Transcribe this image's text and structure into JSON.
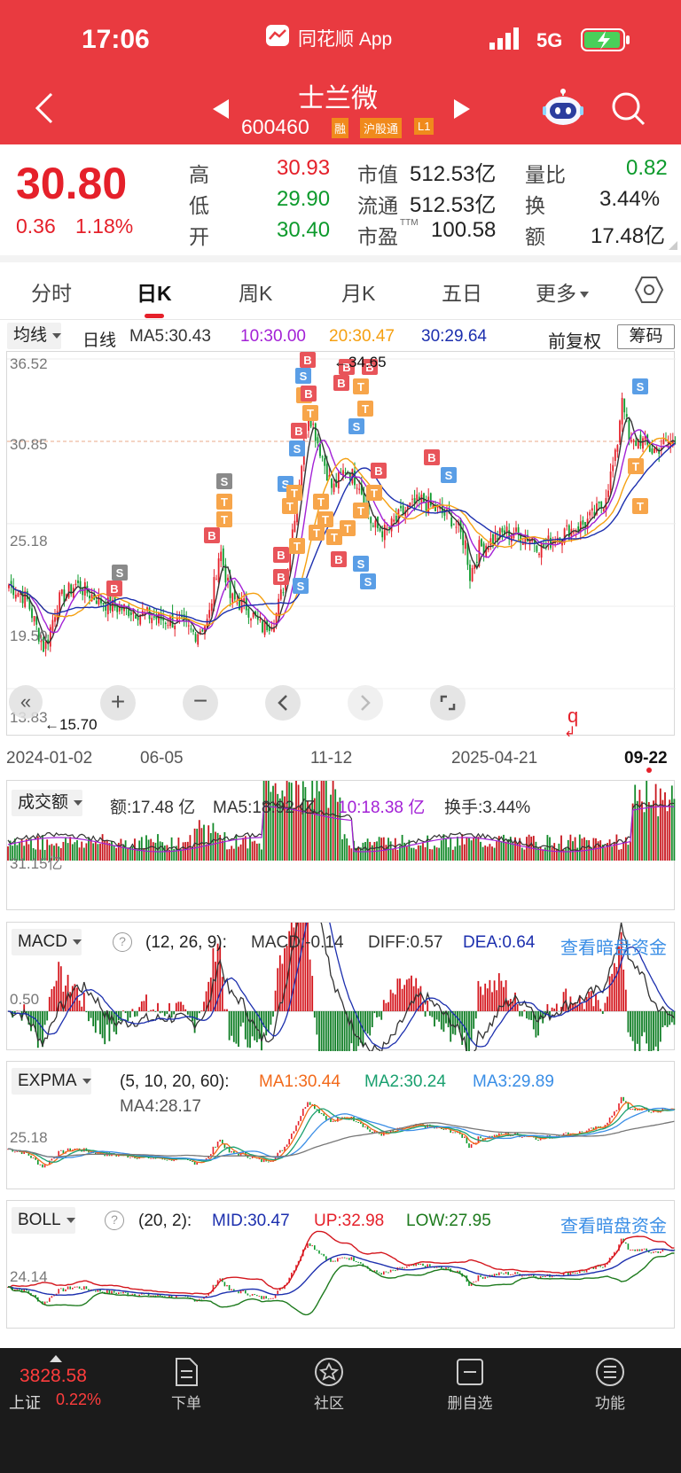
{
  "status_bar": {
    "time": "17:06",
    "app_name": "同花顺 App",
    "network": "5G"
  },
  "nav": {
    "stock_name": "士兰微",
    "stock_code": "600460",
    "badges": [
      "融",
      "沪股通",
      "L1"
    ]
  },
  "quote": {
    "price": "30.80",
    "change": "0.36",
    "change_pct": "1.18%",
    "high_label": "高",
    "high": "30.93",
    "low_label": "低",
    "low": "29.90",
    "open_label": "开",
    "open": "30.40",
    "mktcap_label": "市值",
    "mktcap": "512.53亿",
    "float_label": "流通",
    "float_cap": "512.53亿",
    "pe_label": "市盈",
    "pe_sup": "TTM",
    "pe": "100.58",
    "vol_ratio_label": "量比",
    "vol_ratio": "0.82",
    "turnover_label": "换",
    "turnover": "3.44%",
    "amount_label": "额",
    "amount": "17.48亿"
  },
  "tabs": [
    "分时",
    "日K",
    "周K",
    "月K",
    "五日",
    "更多"
  ],
  "active_tab": 1,
  "kline": {
    "indicator": "均线",
    "period": "日线",
    "ma5": "MA5:30.43",
    "ma10": "10:30.00",
    "ma20": "20:30.47",
    "ma30": "30:29.64",
    "adjust": "前复权",
    "chips": "筹码",
    "y_labels": [
      "36.52",
      "30.85",
      "25.18",
      "19.50",
      "13.83"
    ],
    "high_mark": "34.65",
    "low_mark": "15.70",
    "x_labels": [
      "2024-01-02",
      "06-05",
      "11-12",
      "2025-04-21",
      "09-22"
    ],
    "marker_q": "q"
  },
  "volume": {
    "indicator": "成交额",
    "amount": "额:17.48 亿",
    "ma5": "MA5:18.92 亿",
    "ma10": "10:18.38 亿",
    "turnover": "换手:3.44%",
    "y_label": "31.15亿"
  },
  "macd": {
    "indicator": "MACD",
    "params": "(12, 26, 9):",
    "macd": "MACD:-0.14",
    "diff": "DIFF:0.57",
    "dea": "DEA:0.64",
    "link": "查看暗盘资金",
    "y_label": "0.50"
  },
  "expma": {
    "indicator": "EXPMA",
    "params": "(5, 10, 20, 60):",
    "ma1": "MA1:30.44",
    "ma2": "MA2:30.24",
    "ma3": "MA3:29.89",
    "ma4": "MA4:28.17",
    "y_label": "25.18"
  },
  "boll": {
    "indicator": "BOLL",
    "params": "(20, 2):",
    "mid": "MID:30.47",
    "up": "UP:32.98",
    "low": "LOW:27.95",
    "link": "查看暗盘资金",
    "y_label": "24.14"
  },
  "bottom": {
    "index_value": "3828.58",
    "index_name": "上证",
    "index_pct": "0.22%",
    "items": [
      "下单",
      "社区",
      "删自选",
      "功能"
    ]
  },
  "colors": {
    "header_red": "#e93a40",
    "up_red": "#e5202a",
    "down_green": "#0d9a2c"
  }
}
